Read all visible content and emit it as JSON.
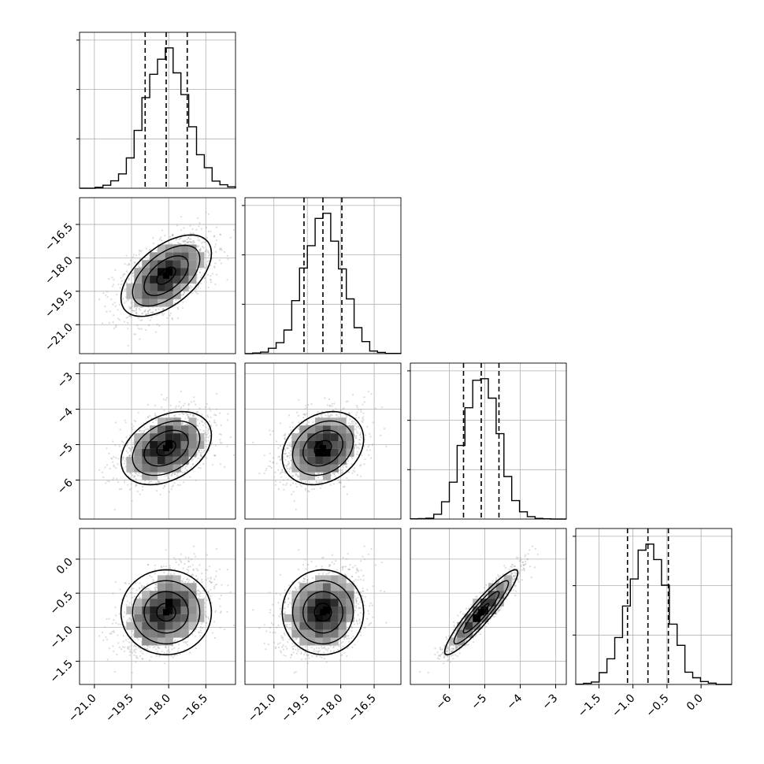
{
  "chart_data": {
    "type": "corner",
    "n_params": 4,
    "title": "",
    "axis_labels": [
      "",
      "",
      "",
      ""
    ],
    "ranges": [
      [
        -21.6,
        -15.3
      ],
      [
        -22.3,
        -15.3
      ],
      [
        -7.1,
        -2.7
      ],
      [
        -1.84,
        0.45
      ]
    ],
    "ticks": [
      [
        -21.0,
        -19.5,
        -18.0,
        -16.5
      ],
      [
        -21.0,
        -19.5,
        -18.0,
        -16.5
      ],
      [
        -6,
        -5,
        -4,
        -3
      ],
      [
        -1.5,
        -1.0,
        -0.5,
        0.0
      ]
    ],
    "tick_labels_x": [
      [
        "-21.0",
        "-19.5",
        "-18.0",
        "-16.5"
      ],
      [
        "-21.0",
        "-19.5",
        "-18.0",
        "-16.5"
      ],
      [
        "-6",
        "-5",
        "-4",
        "-3"
      ],
      [
        "-1.5",
        "-1.0",
        "-0.5",
        "0.0"
      ]
    ],
    "tick_labels_y": [
      [
        "-16.5",
        "-18.0",
        "-19.5",
        "-21.0"
      ],
      [
        "-3",
        "-4",
        "-5",
        "-6"
      ],
      [
        "0.0",
        "-0.5",
        "-1.0",
        "-1.5"
      ]
    ],
    "means": [
      -18.1,
      -18.8,
      -5.1,
      -0.78
    ],
    "sigmas": [
      0.85,
      0.85,
      0.48,
      0.29
    ],
    "quantiles": {
      "levels": [
        0.16,
        0.5,
        0.84
      ],
      "values": [
        [
          -18.95,
          -18.1,
          -17.25
        ],
        [
          -19.65,
          -18.8,
          -17.95
        ],
        [
          -5.6,
          -5.1,
          -4.6
        ],
        [
          -1.08,
          -0.78,
          -0.48
        ]
      ]
    },
    "correlations": [
      {
        "pair": [
          0,
          1
        ],
        "rho": 0.55
      },
      {
        "pair": [
          0,
          2
        ],
        "rho": 0.35
      },
      {
        "pair": [
          1,
          2
        ],
        "rho": 0.25
      },
      {
        "pair": [
          0,
          3
        ],
        "rho": 0.0
      },
      {
        "pair": [
          1,
          3
        ],
        "rho": 0.0
      },
      {
        "pair": [
          2,
          3
        ],
        "rho": 0.93
      }
    ],
    "histogram_bins": 20,
    "grid": true,
    "colors": {
      "lines": "#000000",
      "points": "#9a9a9a",
      "grid": "#b0b0b0",
      "background": "#ffffff"
    }
  }
}
